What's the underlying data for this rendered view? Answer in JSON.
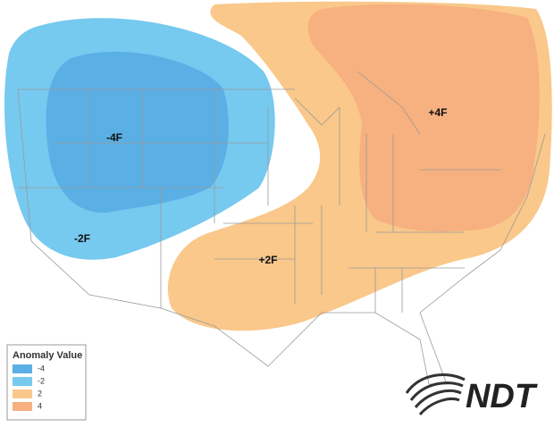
{
  "labels": [
    "-4F",
    "-2F",
    "+2F",
    "+4F"
  ],
  "legend": {
    "title": "Anomaly Value",
    "items": [
      {
        "label": "-4",
        "color": "#5aafe5"
      },
      {
        "label": "-2",
        "color": "#76c9ef"
      },
      {
        "label": "2",
        "color": "#f9c88a"
      },
      {
        "label": "4",
        "color": "#f7b07f"
      }
    ]
  },
  "logo": "NDT"
}
